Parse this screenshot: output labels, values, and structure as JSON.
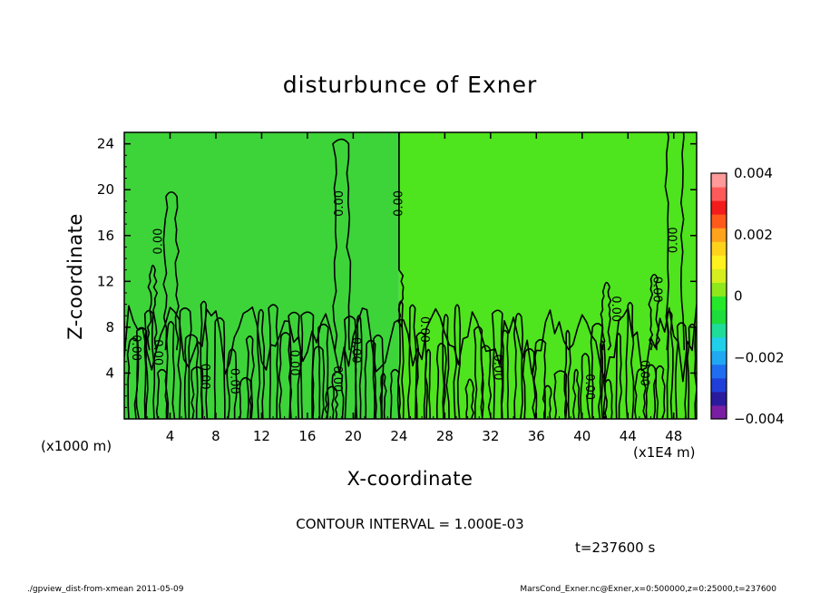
{
  "chart_data": {
    "type": "heatmap",
    "title": "disturbunce of Exner",
    "xlabel": "X-coordinate",
    "ylabel": "Z-coordinate",
    "x_unit": "(x1E4 m)",
    "y_unit": "(x1000 m)",
    "xlim": [
      0,
      50
    ],
    "ylim": [
      0,
      25
    ],
    "x_ticks": [
      4,
      8,
      12,
      16,
      20,
      24,
      28,
      32,
      36,
      40,
      44,
      48
    ],
    "y_ticks": [
      4,
      8,
      12,
      16,
      20,
      24
    ],
    "colorbar": {
      "min": -0.004,
      "max": 0.004,
      "tick_values": [
        0.004,
        0.002,
        0,
        -0.002,
        -0.004
      ],
      "tick_labels": [
        "0.004",
        "0.002",
        "0",
        "−0.002",
        "−0.004"
      ],
      "colors": [
        "#7a1fa3",
        "#2a1b9e",
        "#1f3fd8",
        "#1f6ef0",
        "#21a8f2",
        "#1fd0e8",
        "#1fdc98",
        "#1ddc3c",
        "#26e82a",
        "#8ee81c",
        "#d6ee1e",
        "#fff21e",
        "#ffd21c",
        "#ffa21c",
        "#ff5a1c",
        "#f21c1c",
        "#ff5a5a",
        "#ff9a9a"
      ]
    },
    "regions": [
      {
        "x_from": 0,
        "x_to": 24,
        "color": "#3dd43a",
        "value_range": [
          0,
          0.0005
        ]
      },
      {
        "x_from": 24,
        "x_to": 50,
        "color": "#4ee41e",
        "value_range": [
          0,
          0.0005
        ]
      }
    ],
    "contour_interval": 0.001,
    "contour_label_text": "0.00",
    "contour_labels": [
      {
        "x": 3.0,
        "z": 15.5,
        "rot": -90
      },
      {
        "x": 18.8,
        "z": 18.8,
        "rot": -90
      },
      {
        "x": 24.0,
        "z": 18.8,
        "rot": -90
      },
      {
        "x": 1.0,
        "z": 6.2,
        "rot": 90
      },
      {
        "x": 2.9,
        "z": 5.8,
        "rot": 90
      },
      {
        "x": 7.0,
        "z": 3.7,
        "rot": 90
      },
      {
        "x": 9.6,
        "z": 3.3,
        "rot": 90
      },
      {
        "x": 14.8,
        "z": 4.9,
        "rot": 90
      },
      {
        "x": 18.6,
        "z": 3.5,
        "rot": 90
      },
      {
        "x": 20.2,
        "z": 6.0,
        "rot": 90
      },
      {
        "x": 26.2,
        "z": 7.8,
        "rot": 90
      },
      {
        "x": 32.6,
        "z": 4.5,
        "rot": 90
      },
      {
        "x": 40.6,
        "z": 2.8,
        "rot": 90
      },
      {
        "x": 42.9,
        "z": 9.6,
        "rot": 90
      },
      {
        "x": 45.4,
        "z": 4.0,
        "rot": 90
      },
      {
        "x": 46.5,
        "z": 11.3,
        "rot": 90
      },
      {
        "x": 48.0,
        "z": 15.6,
        "rot": -90
      }
    ],
    "contour_interval_text": "CONTOUR INTERVAL = 1.000E-03",
    "time_text": "t=237600 s"
  },
  "footer": {
    "left": "./gpview_dist-from-xmean  2011-05-09",
    "right": "MarsCond_Exner.nc@Exner,x=0:500000,z=0:25000,t=237600"
  },
  "colors": {
    "contour": "#000000",
    "frame": "#000000"
  }
}
